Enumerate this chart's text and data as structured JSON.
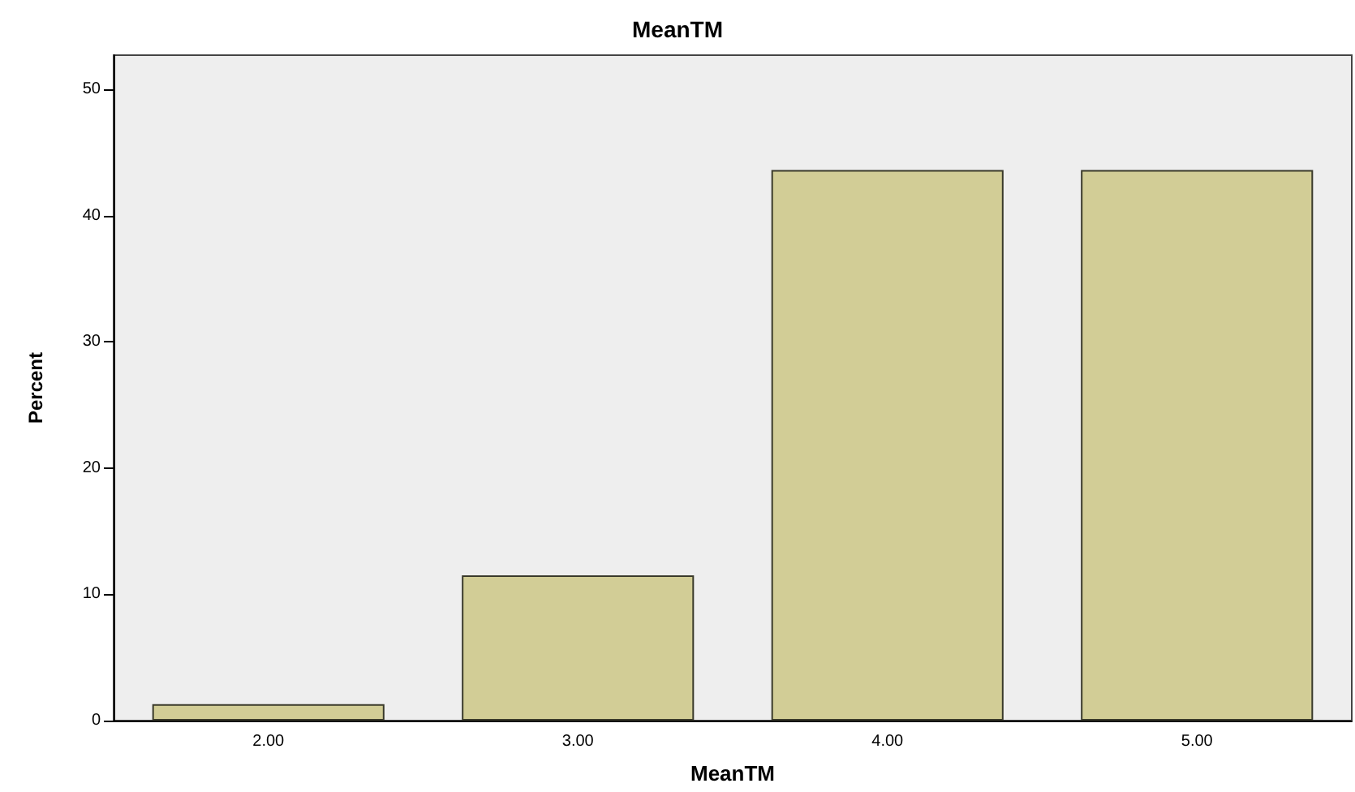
{
  "chart_data": {
    "type": "bar",
    "title": "MeanTM",
    "xlabel": "MeanTM",
    "ylabel": "Percent",
    "categories": [
      "2.00",
      "3.00",
      "4.00",
      "5.00"
    ],
    "values": [
      1.3,
      11.5,
      43.6,
      43.6
    ],
    "color": "#d2cd96",
    "ylim": [
      0,
      52.7
    ],
    "yticks": [
      0,
      10,
      20,
      30,
      40,
      50
    ],
    "grid": false
  }
}
